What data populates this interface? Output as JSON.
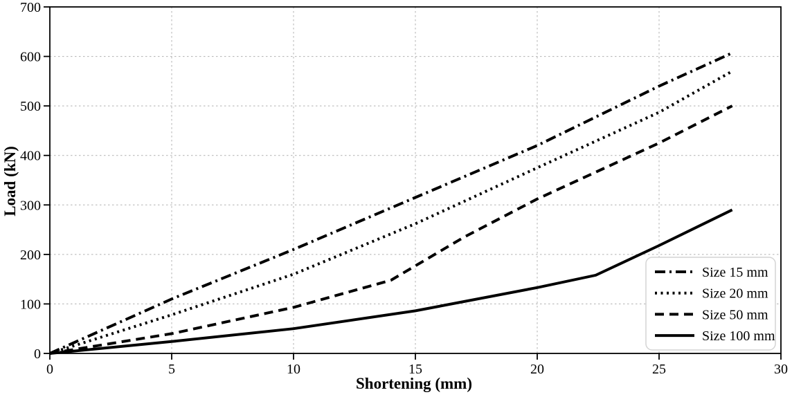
{
  "figure": {
    "background": "#ffffff"
  },
  "chart_data": {
    "type": "line",
    "title": "",
    "xlabel": "Shortening (mm)",
    "ylabel": "Load (kN)",
    "xlim": [
      0,
      30
    ],
    "ylim": [
      0,
      700
    ],
    "xticks": [
      0,
      5,
      10,
      15,
      20,
      25,
      30
    ],
    "yticks": [
      0,
      100,
      200,
      300,
      400,
      500,
      600,
      700
    ],
    "grid": true,
    "line_color": "#000000",
    "grid_color": "#b0b0b0",
    "legend": {
      "position": "lower-right",
      "border_color": "#d4d4d4",
      "background": "#ffffff",
      "entries": [
        "Size 15 mm",
        "Size 20 mm",
        "Size 50 mm",
        "Size 100 mm"
      ]
    },
    "series": [
      {
        "name": "Size 15 mm",
        "style": "dashdot",
        "x": [
          0,
          5,
          10,
          15,
          20,
          25,
          28
        ],
        "y": [
          0,
          110,
          210,
          315,
          420,
          540,
          607
        ]
      },
      {
        "name": "Size 20 mm",
        "style": "dotted",
        "x": [
          0,
          5,
          10,
          15,
          20,
          25,
          28
        ],
        "y": [
          0,
          78,
          160,
          262,
          375,
          487,
          570
        ]
      },
      {
        "name": "Size 50 mm",
        "style": "dashed",
        "x": [
          0,
          5,
          10,
          14,
          17,
          20,
          25,
          28
        ],
        "y": [
          0,
          40,
          93,
          148,
          235,
          312,
          425,
          500
        ]
      },
      {
        "name": "Size 100 mm",
        "style": "solid",
        "x": [
          0,
          5,
          10,
          15,
          20,
          22.4,
          25,
          28
        ],
        "y": [
          0,
          24,
          50,
          86,
          133,
          158,
          218,
          290
        ]
      }
    ]
  }
}
